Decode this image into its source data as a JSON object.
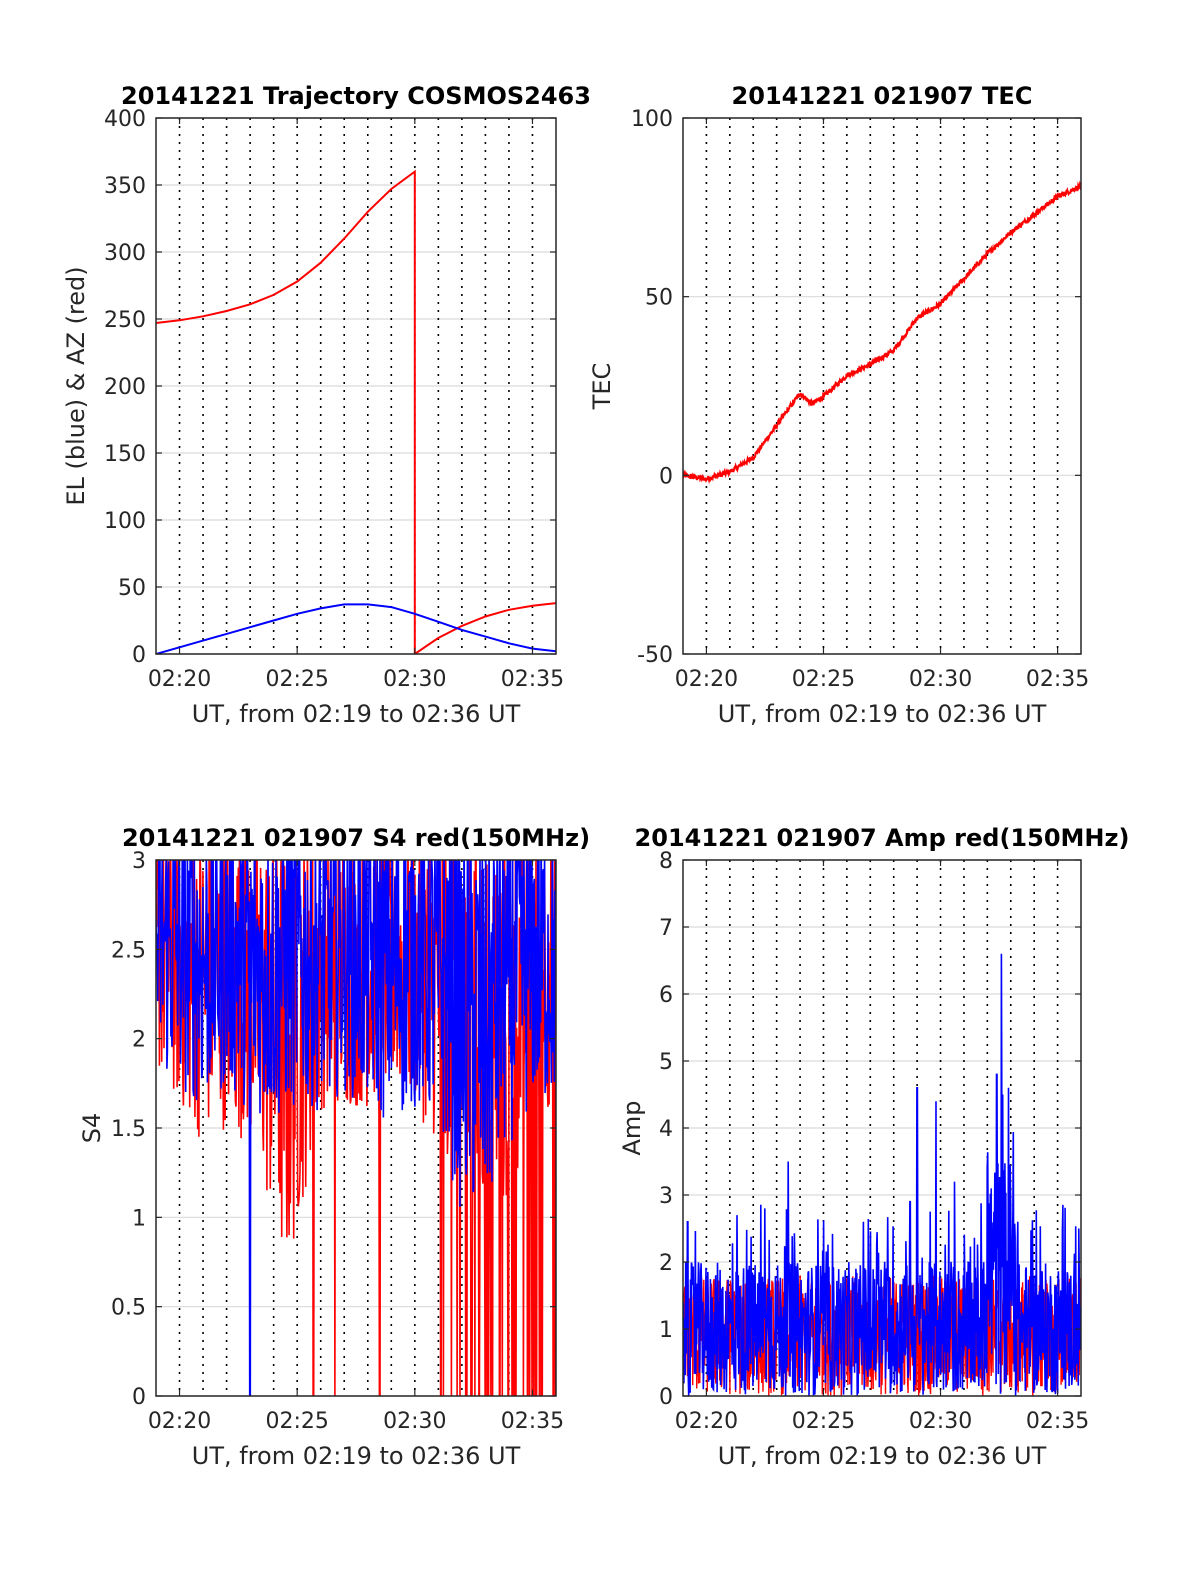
{
  "colors": {
    "az": "#ff0000",
    "el": "#0000ff",
    "tec": "#ff0000",
    "red_series": "#ff0000",
    "blue_series": "#0000ff",
    "grid": "#d9d9d9",
    "axes": "#262626"
  },
  "chart_data": [
    {
      "id": "trajectory",
      "type": "line",
      "title": "20141221 Trajectory COSMOS2463",
      "xlabel": "UT, from 02:19 to 02:36 UT",
      "ylabel": "EL (blue) & AZ (red)",
      "x_unit": "minutes",
      "xlim": [
        "02:19",
        "02:36"
      ],
      "ylim": [
        0,
        400
      ],
      "xticks": [
        "02:20",
        "02:25",
        "02:30",
        "02:35"
      ],
      "yticks": [
        "0",
        "50",
        "100",
        "150",
        "200",
        "250",
        "300",
        "350",
        "400"
      ],
      "grid": true,
      "vertical_dotted_lines_every": "1 minute",
      "series": [
        {
          "color": "red",
          "points": [
            [
              "02:19",
              247
            ],
            [
              "02:20",
              249
            ],
            [
              "02:21",
              252
            ],
            [
              "02:22",
              256
            ],
            [
              "02:23",
              261
            ],
            [
              "02:24",
              268
            ],
            [
              "02:25",
              278
            ],
            [
              "02:26",
              292
            ],
            [
              "02:27",
              310
            ],
            [
              "02:28",
              330
            ],
            [
              "02:29",
              347
            ],
            [
              "02:30",
              360
            ],
            [
              "02:30",
              0
            ],
            [
              "02:31",
              12
            ],
            [
              "02:32",
              21
            ],
            [
              "02:33",
              28
            ],
            [
              "02:34",
              33
            ],
            [
              "02:35",
              36
            ],
            [
              "02:36",
              38
            ]
          ]
        },
        {
          "color": "blue",
          "points": [
            [
              "02:19",
              0
            ],
            [
              "02:20",
              5
            ],
            [
              "02:21",
              10
            ],
            [
              "02:22",
              15
            ],
            [
              "02:23",
              20
            ],
            [
              "02:24",
              25
            ],
            [
              "02:25",
              30
            ],
            [
              "02:26",
              34
            ],
            [
              "02:27",
              37
            ],
            [
              "02:28",
              37
            ],
            [
              "02:29",
              35
            ],
            [
              "02:30",
              30
            ],
            [
              "02:31",
              24
            ],
            [
              "02:32",
              18
            ],
            [
              "02:33",
              13
            ],
            [
              "02:34",
              8
            ],
            [
              "02:35",
              4
            ],
            [
              "02:36",
              2
            ]
          ]
        }
      ]
    },
    {
      "id": "tec",
      "type": "line",
      "title": "20141221 021907 TEC",
      "xlabel": "UT, from 02:19 to 02:36 UT",
      "ylabel": "TEC",
      "xlim": [
        "02:19",
        "02:36"
      ],
      "ylim": [
        -50,
        100
      ],
      "xticks": [
        "02:20",
        "02:25",
        "02:30",
        "02:35"
      ],
      "yticks": [
        "-50",
        "0",
        "50",
        "100"
      ],
      "grid": true,
      "series": [
        {
          "color": "red",
          "points": [
            [
              "02:19",
              0
            ],
            [
              "02:20",
              -1
            ],
            [
              "02:21",
              1
            ],
            [
              "02:22",
              5
            ],
            [
              "02:23",
              14
            ],
            [
              "02:24",
              23
            ],
            [
              "02:24.5",
              20
            ],
            [
              "02:25",
              22
            ],
            [
              "02:26",
              28
            ],
            [
              "02:27",
              31
            ],
            [
              "02:28",
              35
            ],
            [
              "02:29",
              44
            ],
            [
              "02:30",
              48
            ],
            [
              "02:31",
              55
            ],
            [
              "02:32",
              62
            ],
            [
              "02:33",
              68
            ],
            [
              "02:34",
              73
            ],
            [
              "02:35",
              78
            ],
            [
              "02:36",
              81
            ]
          ]
        }
      ]
    },
    {
      "id": "s4",
      "type": "line",
      "title": "20141221 021907 S4 red(150MHz)",
      "xlabel": "UT, from 02:19 to 02:36 UT",
      "ylabel": "S4",
      "xlim": [
        "02:19",
        "02:36"
      ],
      "ylim": [
        0,
        3
      ],
      "xticks": [
        "02:20",
        "02:25",
        "02:30",
        "02:35"
      ],
      "yticks": [
        "0",
        "0.5",
        "1",
        "1.5",
        "2",
        "2.5",
        "3"
      ],
      "grid": true,
      "series": [
        {
          "color": "red",
          "envelope_lower": [
            [
              "02:19",
              1.8
            ],
            [
              "02:20",
              1.6
            ],
            [
              "02:21",
              1.4
            ],
            [
              "02:22",
              1.5
            ],
            [
              "02:23",
              1.4
            ],
            [
              "02:24",
              0.9
            ],
            [
              "02:24.5",
              0.6
            ],
            [
              "02:25",
              0.9
            ],
            [
              "02:26",
              1.6
            ],
            [
              "02:27",
              1.6
            ],
            [
              "02:28",
              1.6
            ],
            [
              "02:29",
              1.7
            ],
            [
              "02:30",
              1.6
            ],
            [
              "02:31",
              1.4
            ],
            [
              "02:32",
              1.2
            ],
            [
              "02:33",
              0.9
            ],
            [
              "02:34",
              1.0
            ],
            [
              "02:35",
              1.6
            ],
            [
              "02:36",
              1.6
            ]
          ],
          "drops_to_zero": [
            "02:25.7",
            "02:26.6",
            "02:28.5",
            "02:31.1",
            "02:31.8",
            "02:32.4",
            "02:33.0",
            "02:33.6",
            "02:34.2",
            "02:34.8",
            "02:35.4",
            "02:35.9"
          ]
        },
        {
          "color": "blue",
          "envelope_lower": [
            [
              "02:19",
              1.8
            ],
            [
              "02:20",
              1.7
            ],
            [
              "02:21",
              1.6
            ],
            [
              "02:22",
              1.7
            ],
            [
              "02:23",
              1.6
            ],
            [
              "02:24",
              1.5
            ],
            [
              "02:25",
              1.6
            ],
            [
              "02:26",
              1.6
            ],
            [
              "02:27",
              1.7
            ],
            [
              "02:28",
              1.6
            ],
            [
              "02:29",
              1.5
            ],
            [
              "02:30",
              1.6
            ],
            [
              "02:31",
              1.5
            ],
            [
              "02:32",
              1.0
            ],
            [
              "02:33",
              0.9
            ],
            [
              "02:34",
              1.4
            ],
            [
              "02:35",
              1.6
            ],
            [
              "02:36",
              1.6
            ]
          ],
          "drops_to_zero": [
            "02:23.0"
          ],
          "upper_clipped_at": 3
        }
      ]
    },
    {
      "id": "amp",
      "type": "line",
      "title": "20141221 021907 Amp red(150MHz)",
      "xlabel": "UT, from 02:19 to 02:36 UT",
      "ylabel": "Amp",
      "xlim": [
        "02:19",
        "02:36"
      ],
      "ylim": [
        0,
        8
      ],
      "xticks": [
        "02:20",
        "02:25",
        "02:30",
        "02:35"
      ],
      "yticks": [
        "0",
        "1",
        "2",
        "3",
        "4",
        "5",
        "6",
        "7",
        "8"
      ],
      "grid": true,
      "series": [
        {
          "color": "blue",
          "baseline_range": [
            0,
            2.0
          ],
          "peaks": [
            [
              "02:19.2",
              2.6
            ],
            [
              "02:21.3",
              2.7
            ],
            [
              "02:22.5",
              2.8
            ],
            [
              "02:23.5",
              3.5
            ],
            [
              "02:26.7",
              2.6
            ],
            [
              "02:28.7",
              2.9
            ],
            [
              "02:29.0",
              4.6
            ],
            [
              "02:29.8",
              4.4
            ],
            [
              "02:30.6",
              3.2
            ],
            [
              "02:32.0",
              3.4
            ],
            [
              "02:32.4",
              4.8
            ],
            [
              "02:32.6",
              6.6
            ],
            [
              "02:32.9",
              4.6
            ],
            [
              "02:33.3",
              2.6
            ],
            [
              "02:35.9",
              2.5
            ]
          ]
        },
        {
          "color": "red",
          "baseline_range": [
            0,
            1.8
          ]
        }
      ]
    }
  ]
}
